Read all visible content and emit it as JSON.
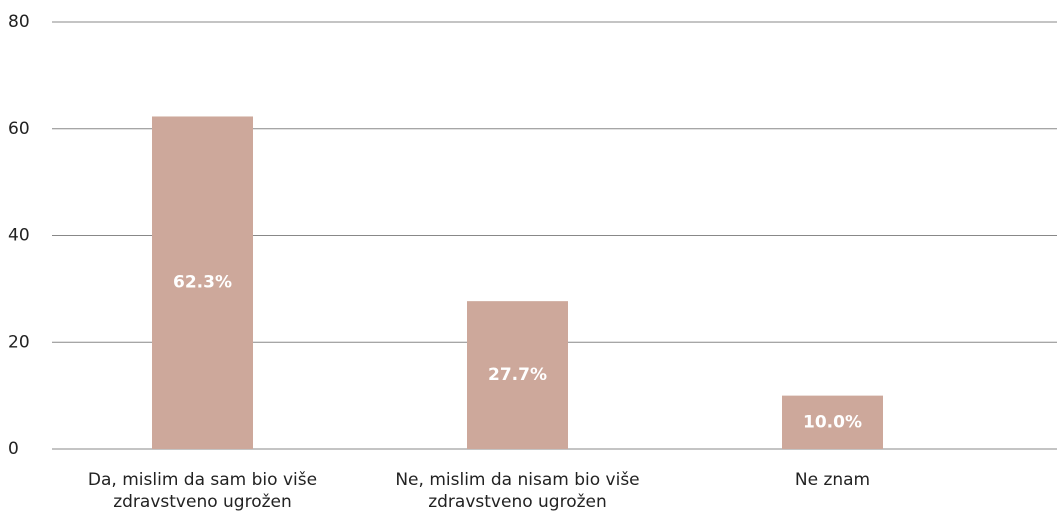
{
  "chart_data": {
    "type": "bar",
    "categories": [
      "Da, mislim da sam bio više zdravstveno ugrožen",
      "Ne, mislim da nisam bio više zdravstveno ugrožen",
      "Ne znam"
    ],
    "values": [
      62.3,
      27.7,
      10.0
    ],
    "value_labels": [
      "62.3%",
      "27.7%",
      "10.0%"
    ],
    "color": "#cda89b",
    "ylim": [
      0,
      80
    ],
    "yticks": [
      0,
      20,
      40,
      60,
      80
    ],
    "grid": true
  }
}
